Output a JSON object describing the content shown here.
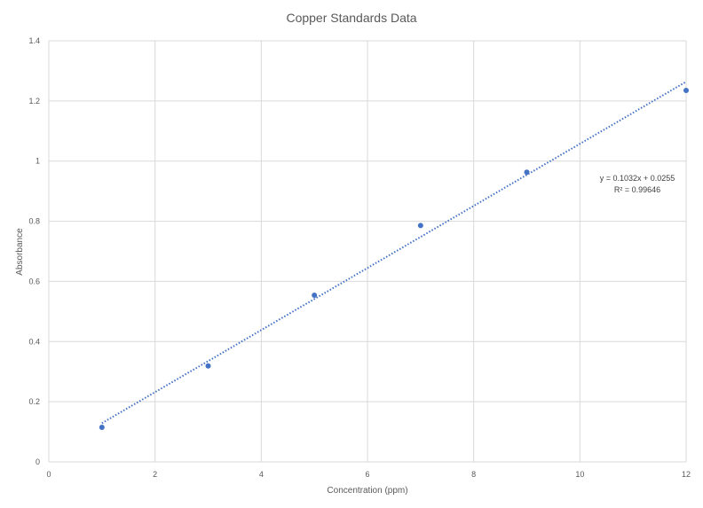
{
  "chart_data": {
    "type": "scatter",
    "title": "Copper Standards Data",
    "xlabel": "Concentration (ppm)",
    "ylabel": "Absorbance",
    "xlim": [
      0,
      12
    ],
    "ylim": [
      0,
      1.4
    ],
    "x_ticks": [
      0,
      2,
      4,
      6,
      8,
      10,
      12
    ],
    "y_ticks": [
      0,
      0.2,
      0.4,
      0.6,
      0.8,
      1,
      1.2,
      1.4
    ],
    "x_tick_labels": [
      "0",
      "2",
      "4",
      "6",
      "8",
      "10",
      "12"
    ],
    "y_tick_labels": [
      "0",
      "0.2",
      "0.4",
      "0.6",
      "0.8",
      "1",
      "1.2",
      "1.4"
    ],
    "grid": true,
    "legend": "none",
    "series": [
      {
        "x": [
          1,
          3,
          5,
          7,
          9,
          12
        ],
        "y": [
          0.115,
          0.319,
          0.554,
          0.786,
          0.963,
          1.235
        ],
        "color": "#4472c4",
        "marker": "circle"
      }
    ],
    "trendline": {
      "type": "linear",
      "slope": 0.1032,
      "intercept": 0.0255,
      "x_range": [
        1,
        12
      ],
      "style": "dotted",
      "color": "#4472c4"
    },
    "annotations": [
      "y = 0.1032x + 0.0255",
      "R² = 0.99646"
    ]
  }
}
